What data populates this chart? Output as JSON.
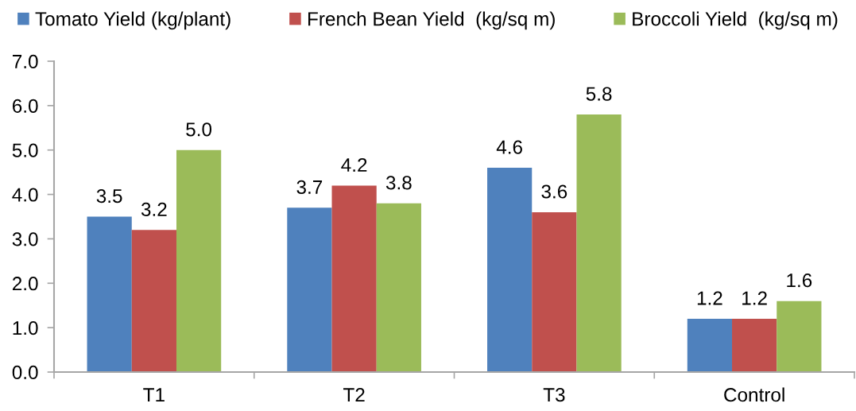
{
  "chart_data": {
    "type": "bar",
    "categories": [
      "T1",
      "T2",
      "T3",
      "Control"
    ],
    "series": [
      {
        "name": "Tomato Yield (kg/plant)",
        "color": "#4f81bd",
        "values": [
          3.5,
          3.7,
          4.6,
          1.2
        ],
        "value_labels": [
          "3.5",
          "3.7",
          "4.6",
          "1.2"
        ]
      },
      {
        "name": "French Bean Yield  (kg/sq m)",
        "color": "#c0504d",
        "values": [
          3.2,
          4.2,
          3.6,
          1.2
        ],
        "value_labels": [
          "3.2",
          "4.2",
          "3.6",
          "1.2"
        ]
      },
      {
        "name": "Broccoli Yield  (kg/sq m)",
        "color": "#9bbb59",
        "values": [
          5.0,
          3.8,
          5.8,
          1.6
        ],
        "value_labels": [
          "5.0",
          "3.8",
          "5.8",
          "1.6"
        ]
      }
    ],
    "ylim": [
      0,
      7
    ],
    "yticks": [
      {
        "value": 0,
        "label": "0.0"
      },
      {
        "value": 1,
        "label": "1.0"
      },
      {
        "value": 2,
        "label": "2.0"
      },
      {
        "value": 3,
        "label": "3.0"
      },
      {
        "value": 4,
        "label": "4.0"
      },
      {
        "value": 5,
        "label": "5.0"
      },
      {
        "value": 6,
        "label": "6.0"
      },
      {
        "value": 7,
        "label": "7.0"
      }
    ],
    "grid": false,
    "legend": "top"
  }
}
